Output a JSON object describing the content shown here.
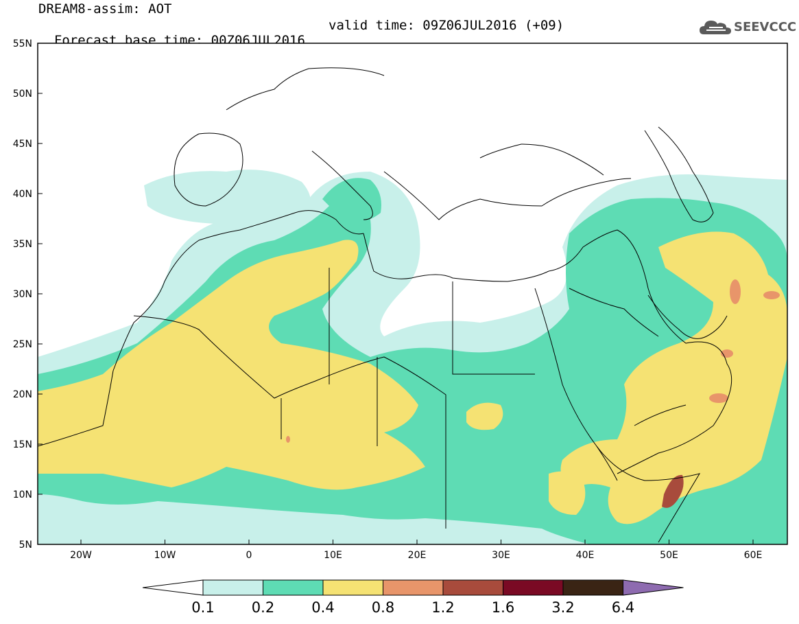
{
  "header": {
    "line1": "DREAM8-assim: AOT",
    "base_time_label": "Forecast base time: 00Z06JUL2016",
    "valid_time_label": "valid time: 09Z06JUL2016 (+09)"
  },
  "logo": {
    "text": "SEEVCCC",
    "icon": "cloud-logo-icon"
  },
  "map": {
    "lon_ticks": [
      "20W",
      "10W",
      "0",
      "10E",
      "20E",
      "30E",
      "40E",
      "50E",
      "60E"
    ],
    "lat_ticks": [
      "55N",
      "50N",
      "45N",
      "40N",
      "35N",
      "30N",
      "25N",
      "20N",
      "15N",
      "10N",
      "5N"
    ]
  },
  "colorbar": {
    "levels": [
      "0.1",
      "0.2",
      "0.4",
      "0.8",
      "1.2",
      "1.6",
      "3.2",
      "6.4"
    ],
    "colors": {
      "below": "#ffffff",
      "c1": "#c8f0ea",
      "c2": "#5edcb4",
      "c3": "#f5e273",
      "c4": "#e8956a",
      "c5": "#a84b3c",
      "c6": "#7a0a24",
      "c7": "#3a2414",
      "above": "#8e6bb0"
    }
  }
}
